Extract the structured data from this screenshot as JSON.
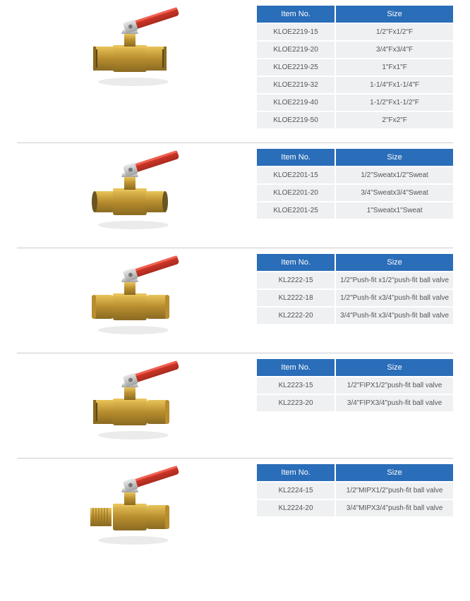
{
  "colors": {
    "header_bg": "#2a6db8",
    "header_text": "#ffffff",
    "row_bg": "#eef0f2",
    "row_text": "#555555",
    "divider": "#cccccc",
    "brass_light": "#e8c45a",
    "brass_dark": "#b88d2e",
    "brass_shadow": "#8a6a22",
    "handle_red": "#d93a2b",
    "handle_red_dark": "#a82a1e",
    "metal_light": "#e8e8e8",
    "metal_dark": "#a0a0a0"
  },
  "headers": {
    "item": "Item No.",
    "size": "Size"
  },
  "sections": [
    {
      "valve_type": "female-female",
      "rows": [
        {
          "item": "KLOE2219-15",
          "size": "1/2\"Fx1/2\"F"
        },
        {
          "item": "KLOE2219-20",
          "size": "3/4\"Fx3/4\"F"
        },
        {
          "item": "KLOE2219-25",
          "size": "1\"Fx1\"F"
        },
        {
          "item": "KLOE2219-32",
          "size": "1-1/4\"Fx1-1/4\"F"
        },
        {
          "item": "KLOE2219-40",
          "size": "1-1/2\"Fx1-1/2\"F"
        },
        {
          "item": "KLOE2219-50",
          "size": "2\"Fx2\"F"
        }
      ]
    },
    {
      "valve_type": "sweat-sweat",
      "rows": [
        {
          "item": "KLOE2201-15",
          "size": "1/2\"Sweatx1/2\"Sweat"
        },
        {
          "item": "KLOE2201-20",
          "size": "3/4\"Sweatx3/4\"Sweat"
        },
        {
          "item": "KLOE2201-25",
          "size": "1\"Sweatx1\"Sweat"
        }
      ]
    },
    {
      "valve_type": "pushfit-pushfit",
      "rows": [
        {
          "item": "KL2222-15",
          "size": "1/2\"Push-fit x1/2\"push-fit ball valve"
        },
        {
          "item": "KL2222-18",
          "size": "1/2\"Push-fit x3/4\"push-fit ball valve"
        },
        {
          "item": "KL2222-20",
          "size": "3/4\"Push-fit x3/4\"push-fit ball valve"
        }
      ]
    },
    {
      "valve_type": "fip-pushfit",
      "rows": [
        {
          "item": "KL2223-15",
          "size": "1/2\"FIPX1/2\"push-fit ball valve"
        },
        {
          "item": "KL2223-20",
          "size": "3/4\"FIPX3/4\"push-fit ball valve"
        }
      ]
    },
    {
      "valve_type": "mip-pushfit",
      "rows": [
        {
          "item": "KL2224-15",
          "size": "1/2\"MIPX1/2\"push-fit ball valve"
        },
        {
          "item": "KL2224-20",
          "size": "3/4\"MIPX3/4\"push-fit ball valve"
        }
      ]
    }
  ]
}
